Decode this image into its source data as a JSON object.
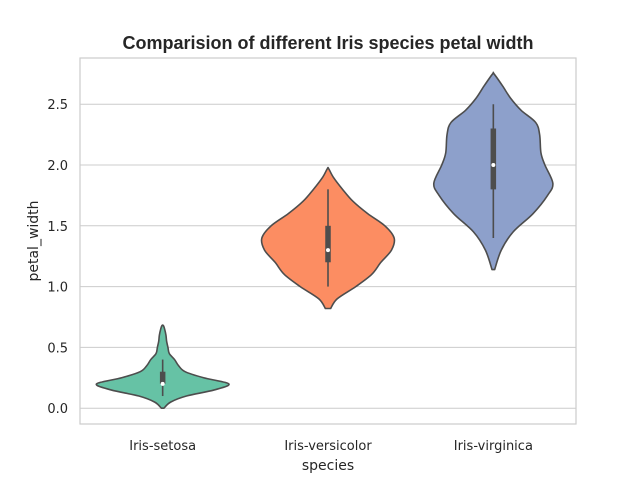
{
  "chart_data": {
    "type": "violin",
    "title": "Comparision of different Iris species petal width",
    "xlabel": "species",
    "ylabel": "petal_width",
    "ylim": [
      -0.13,
      2.88
    ],
    "yticks": [
      "0.0",
      "0.5",
      "1.0",
      "1.5",
      "2.0",
      "2.5"
    ],
    "grid": "horizontal",
    "categories": [
      "Iris-setosa",
      "Iris-versicolor",
      "Iris-virginica"
    ],
    "series": [
      {
        "category": "Iris-setosa",
        "color": "#66c2a5",
        "min": 0.1,
        "q1": 0.2,
        "median": 0.2,
        "q3": 0.3,
        "max": 0.4,
        "kde_range": [
          0.0,
          0.68
        ],
        "density": [
          [
            0.0,
            0.02
          ],
          [
            0.05,
            0.12
          ],
          [
            0.1,
            0.36
          ],
          [
            0.15,
            0.78
          ],
          [
            0.2,
            1.0
          ],
          [
            0.25,
            0.62
          ],
          [
            0.3,
            0.34
          ],
          [
            0.35,
            0.24
          ],
          [
            0.4,
            0.18
          ],
          [
            0.45,
            0.1
          ],
          [
            0.5,
            0.08
          ],
          [
            0.55,
            0.06
          ],
          [
            0.6,
            0.05
          ],
          [
            0.65,
            0.03
          ],
          [
            0.68,
            0.01
          ]
        ]
      },
      {
        "category": "Iris-versicolor",
        "color": "#fc8d62",
        "min": 1.0,
        "q1": 1.2,
        "median": 1.3,
        "q3": 1.5,
        "max": 1.8,
        "kde_range": [
          0.82,
          1.97
        ],
        "density": [
          [
            0.82,
            0.04
          ],
          [
            0.9,
            0.14
          ],
          [
            1.0,
            0.42
          ],
          [
            1.1,
            0.66
          ],
          [
            1.2,
            0.8
          ],
          [
            1.3,
            0.96
          ],
          [
            1.4,
            1.0
          ],
          [
            1.5,
            0.86
          ],
          [
            1.6,
            0.6
          ],
          [
            1.7,
            0.38
          ],
          [
            1.8,
            0.22
          ],
          [
            1.9,
            0.08
          ],
          [
            1.97,
            0.01
          ]
        ]
      },
      {
        "category": "Iris-virginica",
        "color": "#8da0cb",
        "min": 1.4,
        "q1": 1.8,
        "median": 2.0,
        "q3": 2.3,
        "max": 2.5,
        "kde_range": [
          1.14,
          2.75
        ],
        "density": [
          [
            1.14,
            0.02
          ],
          [
            1.3,
            0.12
          ],
          [
            1.45,
            0.3
          ],
          [
            1.6,
            0.6
          ],
          [
            1.75,
            0.82
          ],
          [
            1.85,
            0.9
          ],
          [
            2.0,
            0.78
          ],
          [
            2.1,
            0.72
          ],
          [
            2.25,
            0.7
          ],
          [
            2.35,
            0.64
          ],
          [
            2.45,
            0.42
          ],
          [
            2.55,
            0.26
          ],
          [
            2.65,
            0.14
          ],
          [
            2.75,
            0.01
          ]
        ]
      }
    ]
  }
}
